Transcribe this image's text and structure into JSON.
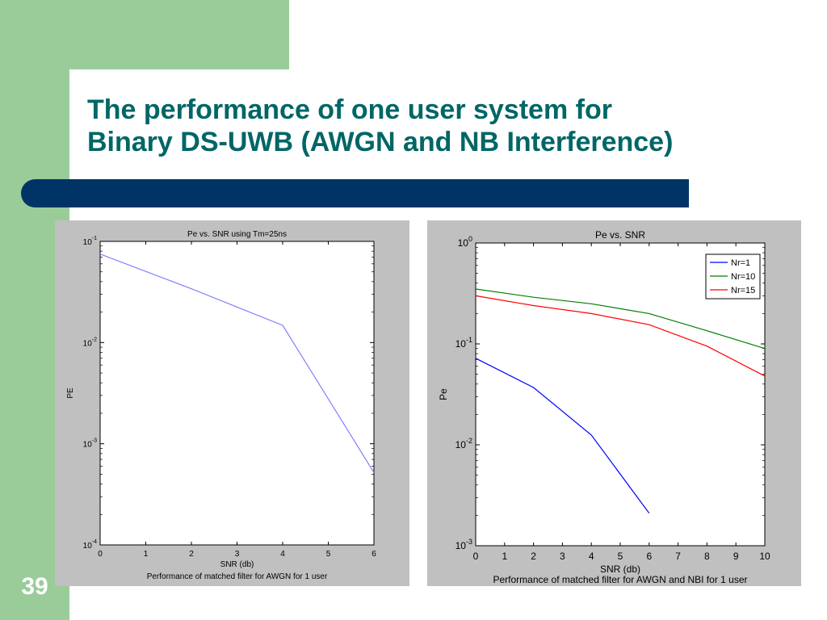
{
  "slide": {
    "title_line1": "The performance of one user system for",
    "title_line2": "Binary DS-UWB (AWGN and NB Interference)",
    "slide_number": "39"
  },
  "colors": {
    "sidebar_green": "#99cc99",
    "title_teal": "#006666",
    "bar_navy": "#003366",
    "plot_background": "#c0c0c0"
  },
  "chart_data": [
    {
      "type": "line",
      "title": "Pe vs. SNR using Tm=25ns",
      "xlabel": "SNR (db)",
      "ylabel": "PE",
      "caption": "Performance of matched filter for AWGN for 1 user",
      "yscale": "log",
      "xlim": [
        0,
        6
      ],
      "ylim": [
        0.0001,
        0.1
      ],
      "xticks": [
        "0",
        "1",
        "2",
        "3",
        "4",
        "5",
        "6"
      ],
      "yticks": [
        {
          "base": "10",
          "exp": "-1",
          "value": 0.1
        },
        {
          "base": "10",
          "exp": "-2",
          "value": 0.01
        },
        {
          "base": "10",
          "exp": "-3",
          "value": 0.001
        },
        {
          "base": "10",
          "exp": "-4",
          "value": 0.0001
        }
      ],
      "grid": false,
      "series": [
        {
          "color": "#7f7fff",
          "x": [
            0,
            2,
            4,
            6
          ],
          "y": [
            0.075,
            0.034,
            0.0148,
            0.00052
          ]
        }
      ]
    },
    {
      "type": "line",
      "title": "Pe vs. SNR",
      "xlabel": "SNR (db)",
      "ylabel": "Pe",
      "caption": "Performance of matched filter for AWGN and NBI for 1 user",
      "yscale": "log",
      "xlim": [
        0,
        10
      ],
      "ylim": [
        0.001,
        1
      ],
      "xticks": [
        "0",
        "1",
        "2",
        "3",
        "4",
        "5",
        "6",
        "7",
        "8",
        "9",
        "10"
      ],
      "yticks": [
        {
          "base": "10",
          "exp": "0",
          "value": 1
        },
        {
          "base": "10",
          "exp": "-1",
          "value": 0.1
        },
        {
          "base": "10",
          "exp": "-2",
          "value": 0.01
        },
        {
          "base": "10",
          "exp": "-3",
          "value": 0.001
        }
      ],
      "grid": false,
      "legend_position": "top-right",
      "series": [
        {
          "name": "Nr=1",
          "color": "#0000ff",
          "x": [
            0,
            2,
            4,
            6
          ],
          "y": [
            0.072,
            0.037,
            0.0125,
            0.0021
          ]
        },
        {
          "name": "Nr=10",
          "color": "#008000",
          "x": [
            0,
            2,
            4,
            6,
            8,
            10
          ],
          "y": [
            0.35,
            0.29,
            0.25,
            0.2,
            0.135,
            0.09
          ]
        },
        {
          "name": "Nr=15",
          "color": "#ff0000",
          "x": [
            0,
            2,
            4,
            6,
            8,
            10
          ],
          "y": [
            0.3,
            0.24,
            0.2,
            0.155,
            0.095,
            0.048
          ]
        }
      ]
    }
  ]
}
